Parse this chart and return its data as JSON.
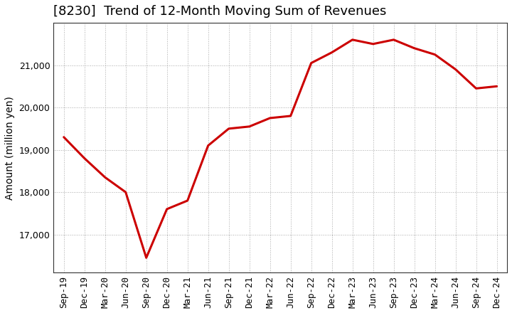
{
  "title": "[8230]  Trend of 12-Month Moving Sum of Revenues",
  "ylabel": "Amount (million yen)",
  "line_color": "#cc0000",
  "background_color": "#ffffff",
  "plot_background_color": "#ffffff",
  "grid_color": "#aaaaaa",
  "x_labels": [
    "Sep-19",
    "Dec-19",
    "Mar-20",
    "Jun-20",
    "Sep-20",
    "Dec-20",
    "Mar-21",
    "Jun-21",
    "Sep-21",
    "Dec-21",
    "Mar-22",
    "Jun-22",
    "Sep-22",
    "Dec-22",
    "Mar-23",
    "Jun-23",
    "Sep-23",
    "Dec-23",
    "Mar-24",
    "Jun-24",
    "Sep-24",
    "Dec-24"
  ],
  "values": [
    19300,
    18800,
    18350,
    18000,
    16450,
    17600,
    17800,
    19100,
    19500,
    19550,
    19750,
    19800,
    21050,
    21300,
    21600,
    21500,
    21600,
    21400,
    21250,
    20900,
    20450,
    20500
  ],
  "ylim_min": 16100,
  "ylim_max": 22000,
  "yticks": [
    17000,
    18000,
    19000,
    20000,
    21000
  ],
  "title_fontsize": 13,
  "axis_label_fontsize": 10,
  "tick_fontsize": 9,
  "line_width": 2.2
}
